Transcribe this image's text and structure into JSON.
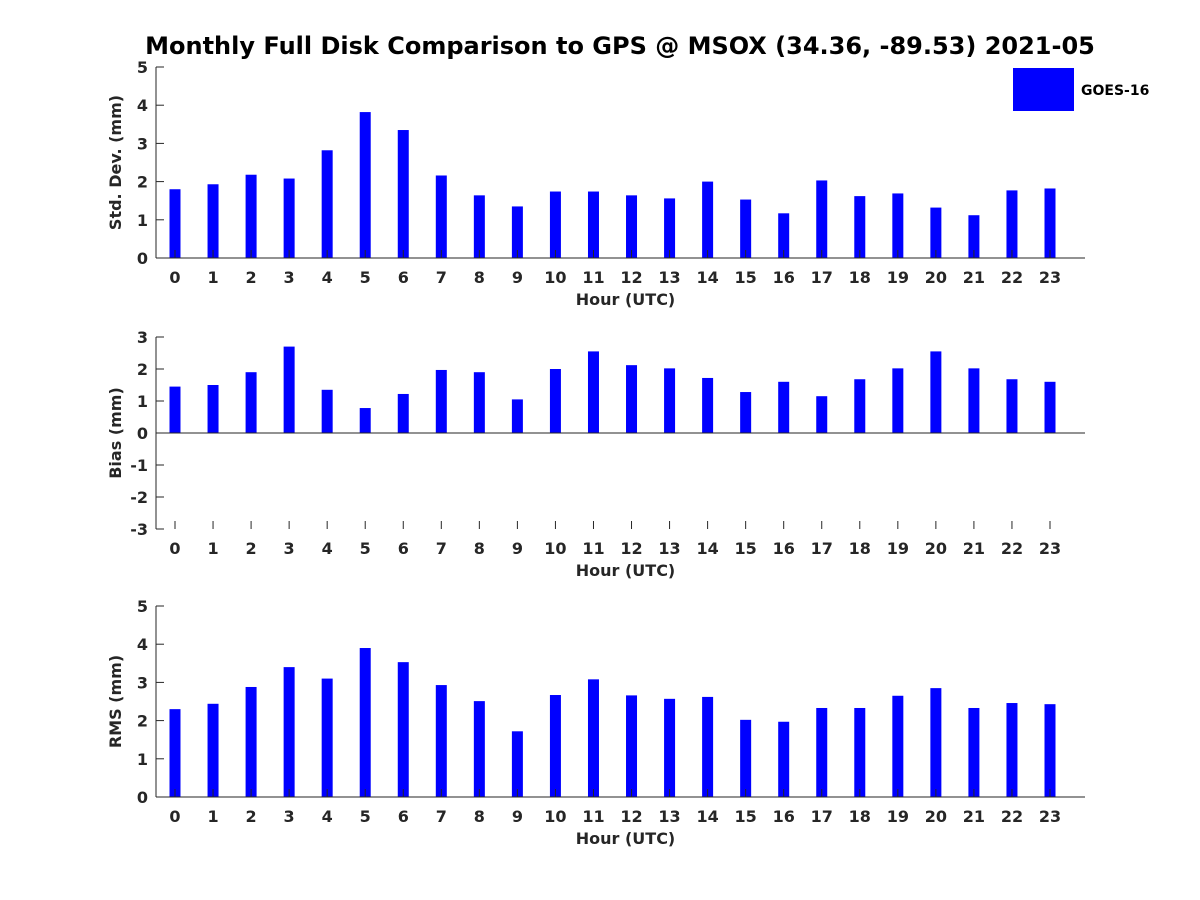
{
  "title": "Monthly Full Disk Comparison to GPS @ MSOX (34.36, -89.53) 2021-05",
  "legend": {
    "label": "GOES-16",
    "color": "#0000ff",
    "placement": "top-right"
  },
  "chart_data": [
    {
      "type": "bar",
      "xlabel": "Hour (UTC)",
      "ylabel": "Std. Dev. (mm)",
      "ylim": [
        0,
        5
      ],
      "yticks": [
        0,
        1,
        2,
        3,
        4,
        5
      ],
      "categories": [
        "0",
        "1",
        "2",
        "3",
        "4",
        "5",
        "6",
        "7",
        "8",
        "9",
        "10",
        "11",
        "12",
        "13",
        "14",
        "15",
        "16",
        "17",
        "18",
        "19",
        "20",
        "21",
        "22",
        "23"
      ],
      "series": [
        {
          "name": "GOES-16",
          "color": "#0000ff",
          "values": [
            1.8,
            1.93,
            2.18,
            2.08,
            2.82,
            3.82,
            3.35,
            2.16,
            1.64,
            1.35,
            1.74,
            1.74,
            1.64,
            1.56,
            2.0,
            1.53,
            1.17,
            2.03,
            1.62,
            1.69,
            1.32,
            1.12,
            1.77,
            1.82
          ]
        }
      ]
    },
    {
      "type": "bar",
      "xlabel": "Hour (UTC)",
      "ylabel": "Bias (mm)",
      "ylim": [
        -3,
        3
      ],
      "yticks": [
        -3,
        -2,
        -1,
        0,
        1,
        2,
        3
      ],
      "categories": [
        "0",
        "1",
        "2",
        "3",
        "4",
        "5",
        "6",
        "7",
        "8",
        "9",
        "10",
        "11",
        "12",
        "13",
        "14",
        "15",
        "16",
        "17",
        "18",
        "19",
        "20",
        "21",
        "22",
        "23"
      ],
      "series": [
        {
          "name": "GOES-16",
          "color": "#0000ff",
          "values": [
            1.45,
            1.5,
            1.9,
            2.7,
            1.35,
            0.78,
            1.22,
            1.97,
            1.9,
            1.05,
            2.0,
            2.55,
            2.12,
            2.02,
            1.72,
            1.28,
            1.6,
            1.15,
            1.68,
            2.02,
            2.55,
            2.02,
            1.68,
            1.6
          ]
        }
      ]
    },
    {
      "type": "bar",
      "xlabel": "Hour (UTC)",
      "ylabel": "RMS (mm)",
      "ylim": [
        0,
        5
      ],
      "yticks": [
        0,
        1,
        2,
        3,
        4,
        5
      ],
      "categories": [
        "0",
        "1",
        "2",
        "3",
        "4",
        "5",
        "6",
        "7",
        "8",
        "9",
        "10",
        "11",
        "12",
        "13",
        "14",
        "15",
        "16",
        "17",
        "18",
        "19",
        "20",
        "21",
        "22",
        "23"
      ],
      "series": [
        {
          "name": "GOES-16",
          "color": "#0000ff",
          "values": [
            2.3,
            2.44,
            2.88,
            3.4,
            3.1,
            3.9,
            3.53,
            2.93,
            2.51,
            1.72,
            2.67,
            3.08,
            2.66,
            2.57,
            2.62,
            2.02,
            1.97,
            2.33,
            2.33,
            2.65,
            2.85,
            2.33,
            2.46,
            2.43
          ]
        }
      ]
    }
  ]
}
